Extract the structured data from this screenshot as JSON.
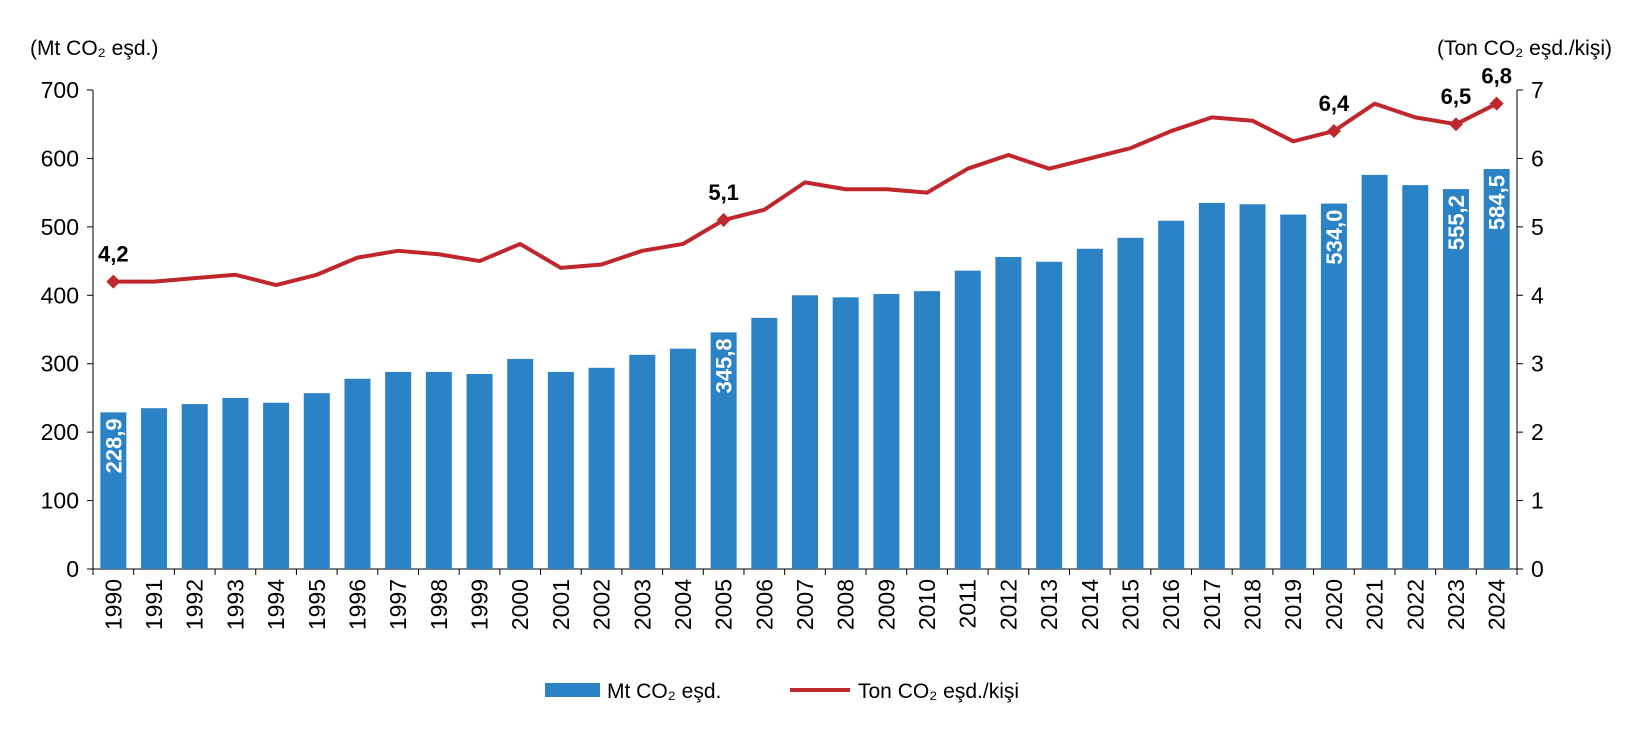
{
  "chart_data": {
    "type": "bar",
    "y_axis_label": "(Mt CO₂ eşd.)",
    "y2_axis_label": "(Ton CO₂ eşd./kişi)",
    "categories": [
      "1990",
      "1991",
      "1992",
      "1993",
      "1994",
      "1995",
      "1996",
      "1997",
      "1998",
      "1999",
      "2000",
      "2001",
      "2002",
      "2003",
      "2004",
      "2005",
      "2006",
      "2007",
      "2008",
      "2009",
      "2010",
      "2011",
      "2012",
      "2013",
      "2014",
      "2015",
      "2016",
      "2017",
      "2018",
      "2019",
      "2020",
      "2021",
      "2022",
      "2023",
      "2024"
    ],
    "series": [
      {
        "name": "Mt CO₂ eşd.",
        "type": "bar",
        "color": "#2b83c6",
        "values": [
          228.9,
          235,
          241,
          250,
          243,
          257,
          278,
          288,
          288,
          285,
          307,
          288,
          294,
          313,
          322,
          345.8,
          367,
          400,
          397,
          402,
          406,
          436,
          456,
          449,
          468,
          484,
          509,
          535,
          533,
          518,
          534.0,
          576,
          561,
          555.2,
          584.5
        ],
        "value_labels": [
          "228,9",
          null,
          null,
          null,
          null,
          null,
          null,
          null,
          null,
          null,
          null,
          null,
          null,
          null,
          null,
          "345,8",
          null,
          null,
          null,
          null,
          null,
          null,
          null,
          null,
          null,
          null,
          null,
          null,
          null,
          null,
          "534,0",
          null,
          null,
          "555,2",
          "584,5"
        ]
      },
      {
        "name": "Ton CO₂ eşd./kişi",
        "type": "line",
        "axis": "y2",
        "color": "#c0272d",
        "values": [
          4.2,
          4.2,
          4.25,
          4.3,
          4.15,
          4.3,
          4.55,
          4.65,
          4.6,
          4.5,
          4.75,
          4.4,
          4.45,
          4.65,
          4.75,
          5.1,
          5.25,
          5.65,
          5.55,
          5.55,
          5.5,
          5.85,
          6.05,
          5.85,
          6.0,
          6.15,
          6.4,
          6.6,
          6.55,
          6.25,
          6.4,
          6.8,
          6.6,
          6.5,
          6.8
        ],
        "value_labels": [
          "4,2",
          null,
          null,
          null,
          null,
          null,
          null,
          null,
          null,
          null,
          null,
          null,
          null,
          null,
          null,
          "5,1",
          null,
          null,
          null,
          null,
          null,
          null,
          null,
          null,
          null,
          null,
          null,
          null,
          null,
          null,
          "6,4",
          null,
          null,
          "6,5",
          "6,8"
        ]
      }
    ],
    "ylim": [
      0,
      700
    ],
    "yticks": [
      0,
      100,
      200,
      300,
      400,
      500,
      600,
      700
    ],
    "y2lim": [
      0,
      7
    ],
    "y2ticks": [
      0,
      1,
      2,
      3,
      4,
      5,
      6,
      7
    ],
    "legend": "bottom"
  }
}
